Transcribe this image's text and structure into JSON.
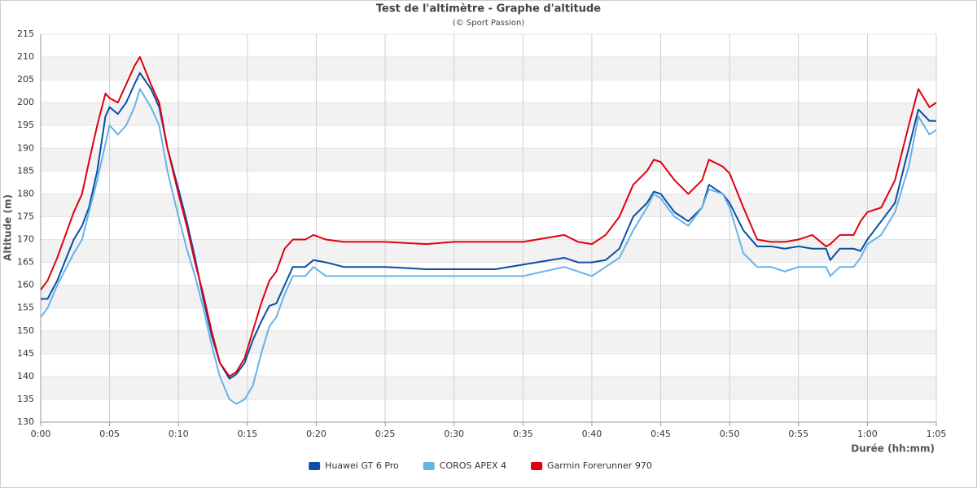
{
  "chart_data": {
    "type": "line",
    "title": "Test de l'altimètre - Graphe d'altitude",
    "subtitle": "(© Sport Passion)",
    "x_label": "Durée (hh:mm)",
    "y_label": "Altitude (m)",
    "x": [
      0,
      0.5,
      1.2,
      2.4,
      3,
      3.5,
      4.1,
      4.7,
      5,
      5.6,
      6.2,
      6.8,
      7.2,
      8,
      8.6,
      9.2,
      10,
      10.6,
      11.2,
      11.8,
      12.4,
      13,
      13.7,
      14.2,
      14.8,
      15.4,
      16,
      16.6,
      17.1,
      17.7,
      18.3,
      19.2,
      19.8,
      20.7,
      22,
      25,
      28,
      30,
      33,
      35,
      38,
      39,
      40,
      41,
      42,
      43,
      44,
      44.5,
      45,
      46,
      47,
      48,
      48.5,
      49.5,
      50,
      51,
      52,
      53,
      54,
      55,
      56,
      57,
      57.3,
      58,
      59,
      59.5,
      60,
      61,
      62,
      63,
      63.7,
      64.5,
      65
    ],
    "series": [
      {
        "name": "Huawei GT 6 Pro",
        "color": "#0b4ea6",
        "values": [
          157,
          157,
          161,
          170,
          173,
          177,
          185,
          197,
          199,
          197.5,
          200,
          204,
          206.5,
          203,
          199,
          190,
          181,
          174,
          166,
          157,
          149,
          143,
          139.5,
          140.5,
          143,
          148,
          152,
          155.5,
          156,
          160,
          164,
          164,
          165.5,
          165,
          164,
          164,
          163.5,
          163.5,
          163.5,
          164.5,
          166,
          165,
          165,
          165.5,
          168,
          175,
          178,
          180.5,
          180,
          176,
          174,
          177,
          182,
          180,
          178,
          172,
          168.5,
          168.5,
          168,
          168.5,
          168,
          168,
          165.5,
          168,
          168,
          167.5,
          170,
          174,
          178,
          190,
          198.5,
          196,
          196
        ]
      },
      {
        "name": "COROS APEX 4",
        "color": "#66b3e6",
        "values": [
          153,
          155,
          160,
          167,
          170,
          176,
          183,
          191,
          195,
          193,
          195,
          199,
          203,
          199,
          195,
          185,
          175,
          168,
          162,
          155,
          147,
          140,
          135,
          134,
          135,
          138,
          145,
          151,
          153,
          158,
          162,
          162,
          164,
          162,
          162,
          162,
          162,
          162,
          162,
          162,
          164,
          163,
          162,
          164,
          166,
          172,
          177,
          180,
          179,
          175,
          173,
          177,
          181,
          180,
          177,
          167,
          164,
          164,
          163,
          164,
          164,
          164,
          162,
          164,
          164,
          166,
          169,
          171,
          176,
          186,
          197,
          193,
          194
        ]
      },
      {
        "name": "Garmin Forerunner 970",
        "color": "#e0000f",
        "values": [
          159,
          161,
          166,
          176,
          180,
          187,
          195,
          202,
          201,
          200,
          204,
          208,
          210,
          204,
          200,
          190,
          180,
          173,
          165,
          158,
          150,
          143,
          140,
          141,
          144,
          150,
          156,
          161,
          163,
          168,
          170,
          170,
          171,
          170,
          169.5,
          169.5,
          169,
          169.5,
          169.5,
          169.5,
          171,
          169.5,
          169,
          171,
          175,
          182,
          185,
          187.5,
          187,
          183,
          180,
          183,
          187.5,
          186,
          184.5,
          177,
          170,
          169.5,
          169.5,
          170,
          171,
          168.5,
          169,
          171,
          171,
          174,
          176,
          177,
          183,
          195,
          203,
          199,
          200
        ]
      }
    ],
    "xlim": [
      0,
      65
    ],
    "xticks": [
      {
        "value": 0,
        "label": "0:00"
      },
      {
        "value": 5,
        "label": "0:05"
      },
      {
        "value": 10,
        "label": "0:10"
      },
      {
        "value": 15,
        "label": "0:15"
      },
      {
        "value": 20,
        "label": "0:20"
      },
      {
        "value": 25,
        "label": "0:25"
      },
      {
        "value": 30,
        "label": "0:30"
      },
      {
        "value": 35,
        "label": "0:35"
      },
      {
        "value": 40,
        "label": "0:40"
      },
      {
        "value": 45,
        "label": "0:45"
      },
      {
        "value": 50,
        "label": "0:50"
      },
      {
        "value": 55,
        "label": "0:55"
      },
      {
        "value": 60,
        "label": "1:00"
      },
      {
        "value": 65,
        "label": "1:05"
      }
    ],
    "ylim": [
      130,
      215
    ],
    "yticks": [
      130,
      135,
      140,
      145,
      150,
      155,
      160,
      165,
      170,
      175,
      180,
      185,
      190,
      195,
      200,
      205,
      210,
      215
    ],
    "grid": true,
    "legend": "bottom"
  }
}
